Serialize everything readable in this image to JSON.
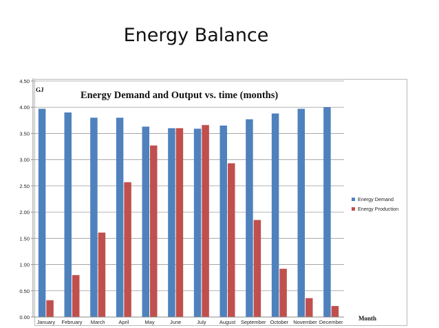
{
  "slide": {
    "title": "Energy Balance"
  },
  "chart_data": {
    "type": "bar",
    "title": "Energy Demand and Output vs. time (months)",
    "unit_label": "GJ",
    "xlabel": "Month",
    "ylabel": "GJ",
    "ylim": [
      0,
      4.5
    ],
    "yticks": [
      "0.00",
      "0.50",
      "1.00",
      "1.50",
      "2.00",
      "2.50",
      "3.00",
      "3.50",
      "4.00",
      "4.50"
    ],
    "grid": true,
    "legend_position": "right",
    "categories": [
      "January",
      "February",
      "March",
      "April",
      "May",
      "June",
      "July",
      "August",
      "September",
      "October",
      "November",
      "December"
    ],
    "series": [
      {
        "name": "Energy Demand",
        "color": "#4f81bd",
        "values": [
          3.97,
          3.9,
          3.8,
          3.8,
          3.63,
          3.6,
          3.59,
          3.65,
          3.77,
          3.88,
          3.97,
          4.0
        ]
      },
      {
        "name": "Energy Production",
        "color": "#c0504d",
        "values": [
          0.32,
          0.8,
          1.61,
          2.57,
          3.27,
          3.6,
          3.66,
          2.93,
          1.85,
          0.92,
          0.36,
          0.21
        ]
      }
    ]
  }
}
